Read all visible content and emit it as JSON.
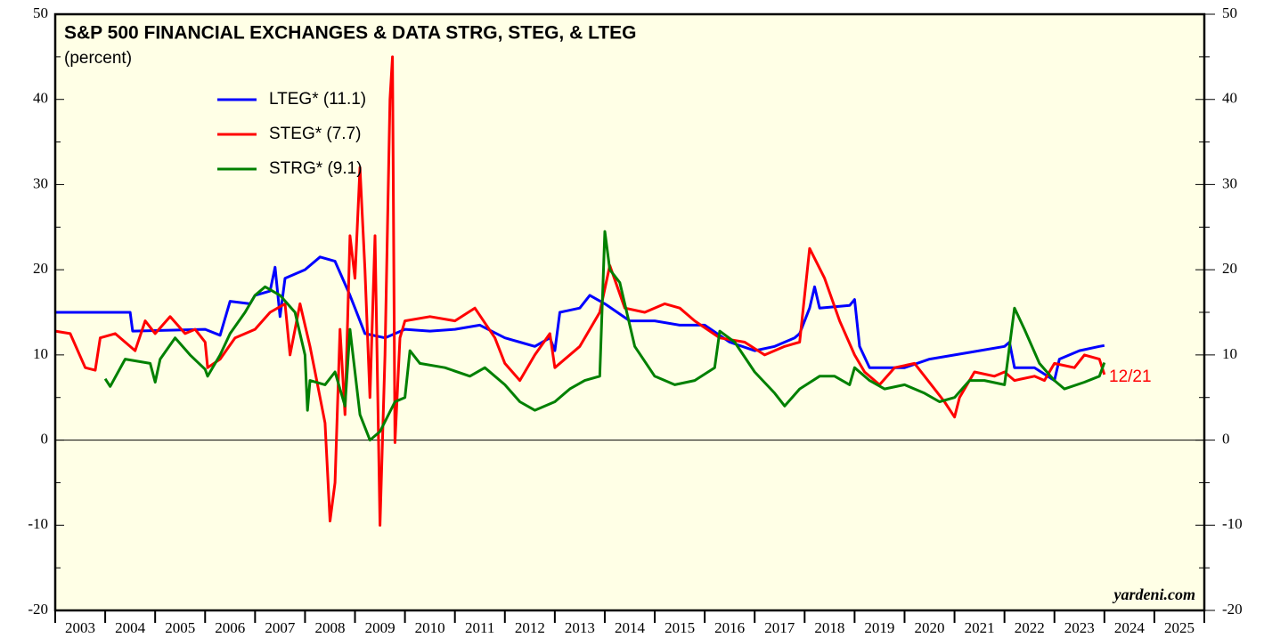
{
  "chart_data": {
    "type": "line",
    "title": "S&P 500 FINANCIAL EXCHANGES & DATA STRG, STEG, & LTEG",
    "subtitle": "(percent)",
    "annotation": "12/21",
    "annotation_color": "#ff0000",
    "source": "yardeni.com",
    "xlim": [
      2003,
      2026
    ],
    "xticks": [
      2003,
      2004,
      2005,
      2006,
      2007,
      2008,
      2009,
      2010,
      2011,
      2012,
      2013,
      2014,
      2015,
      2016,
      2017,
      2018,
      2019,
      2020,
      2021,
      2022,
      2023,
      2024,
      2025,
      2026
    ],
    "year_labels": [
      "2003",
      "2004",
      "2005",
      "2006",
      "2007",
      "2008",
      "2009",
      "2010",
      "2011",
      "2012",
      "2013",
      "2014",
      "2015",
      "2016",
      "2017",
      "2018",
      "2019",
      "2020",
      "2021",
      "2022",
      "2023",
      "2024",
      "2025"
    ],
    "ylim": [
      -20,
      50
    ],
    "yticks": [
      -20,
      -10,
      0,
      10,
      20,
      30,
      40,
      50
    ],
    "yticks_minor": [
      -15,
      -5,
      5,
      15,
      25,
      35,
      45
    ],
    "series": [
      {
        "name": "LTEG* (11.1)",
        "color": "#0000ff",
        "x": [
          2003.0,
          2004.5,
          2004.55,
          2006.0,
          2006.3,
          2006.5,
          2006.9,
          2007.0,
          2007.3,
          2007.4,
          2007.5,
          2007.6,
          2008.0,
          2008.3,
          2008.6,
          2008.9,
          2009.0,
          2009.2,
          2009.6,
          2010.0,
          2010.5,
          2011.0,
          2011.5,
          2012.0,
          2012.3,
          2012.6,
          2012.9,
          2013.0,
          2013.1,
          2013.5,
          2013.7,
          2014.0,
          2014.5,
          2015.0,
          2015.5,
          2016.0,
          2016.5,
          2017.0,
          2017.4,
          2017.8,
          2017.9,
          2018.1,
          2018.2,
          2018.3,
          2018.9,
          2019.0,
          2019.1,
          2019.3,
          2019.6,
          2020.0,
          2020.5,
          2021.0,
          2021.5,
          2022.0,
          2022.1,
          2022.2,
          2022.6,
          2023.0,
          2023.1,
          2023.5,
          2023.9,
          2024.0
        ],
        "values": [
          15,
          15,
          12.8,
          13,
          12.3,
          16.3,
          16,
          17,
          17.5,
          20.3,
          14.5,
          19,
          20,
          21.5,
          21,
          17,
          15.5,
          12.5,
          12,
          13,
          12.8,
          13,
          13.5,
          12,
          11.5,
          11,
          12,
          10.5,
          15,
          15.5,
          17,
          16,
          14,
          14,
          13.5,
          13.5,
          11.5,
          10.5,
          11,
          12,
          12.5,
          15.5,
          18,
          15.5,
          15.8,
          16.5,
          11,
          8.5,
          8.5,
          8.5,
          9.5,
          10,
          10.5,
          11,
          11.5,
          8.5,
          8.5,
          7,
          9.5,
          10.5,
          11,
          11.1
        ]
      },
      {
        "name": "STEG* (7.7)",
        "color": "#ff0000",
        "x": [
          2003.0,
          2003.3,
          2003.6,
          2003.8,
          2003.9,
          2004.2,
          2004.6,
          2004.8,
          2005.0,
          2005.3,
          2005.6,
          2005.8,
          2006.0,
          2006.05,
          2006.3,
          2006.6,
          2007.0,
          2007.3,
          2007.6,
          2007.7,
          2007.9,
          2008.1,
          2008.2,
          2008.4,
          2008.5,
          2008.6,
          2008.7,
          2008.8,
          2008.9,
          2009.0,
          2009.1,
          2009.2,
          2009.3,
          2009.4,
          2009.5,
          2009.6,
          2009.7,
          2009.75,
          2009.8,
          2009.9,
          2010.0,
          2010.5,
          2011.0,
          2011.4,
          2011.8,
          2012.0,
          2012.3,
          2012.6,
          2012.9,
          2013.0,
          2013.5,
          2013.9,
          2014.1,
          2014.4,
          2014.8,
          2015.2,
          2015.5,
          2015.8,
          2016.3,
          2016.8,
          2017.2,
          2017.6,
          2017.9,
          2018.0,
          2018.1,
          2018.4,
          2018.7,
          2019.0,
          2019.2,
          2019.5,
          2019.8,
          2020.2,
          2020.6,
          2020.8,
          2021.0,
          2021.1,
          2021.4,
          2021.8,
          2022.0,
          2022.2,
          2022.6,
          2022.8,
          2023.0,
          2023.4,
          2023.6,
          2023.9,
          2024.0
        ],
        "values": [
          12.8,
          12.5,
          8.5,
          8.2,
          12,
          12.5,
          10.5,
          14,
          12.5,
          14.5,
          12.5,
          13,
          11.5,
          8.5,
          9.5,
          12,
          13,
          15,
          16,
          10,
          16,
          11,
          8,
          2,
          -9.5,
          -5,
          13,
          3,
          24,
          19,
          32,
          20,
          5,
          24,
          -10,
          10,
          40,
          45,
          -0.3,
          12,
          14,
          14.5,
          14,
          15.5,
          12,
          9,
          7,
          10,
          12.5,
          8.5,
          11,
          15,
          20.5,
          15.5,
          15,
          16,
          15.5,
          14,
          12,
          11.5,
          10,
          11,
          11.5,
          17,
          22.5,
          19,
          14,
          10,
          8,
          6.5,
          8.5,
          9,
          6,
          4.5,
          2.7,
          5,
          8,
          7.5,
          8,
          7,
          7.5,
          7,
          9,
          8.5,
          10,
          9.5,
          7.7
        ]
      },
      {
        "name": "STRG* (9.1)",
        "color": "#008000",
        "x": [
          2004.0,
          2004.1,
          2004.4,
          2004.9,
          2005.0,
          2005.1,
          2005.4,
          2005.7,
          2006.0,
          2006.05,
          2006.3,
          2006.5,
          2006.8,
          2007.0,
          2007.2,
          2007.5,
          2007.8,
          2008.0,
          2008.05,
          2008.1,
          2008.4,
          2008.6,
          2008.8,
          2008.9,
          2009.1,
          2009.3,
          2009.5,
          2009.8,
          2010.0,
          2010.1,
          2010.3,
          2010.8,
          2011.3,
          2011.6,
          2012.0,
          2012.3,
          2012.6,
          2013.0,
          2013.3,
          2013.6,
          2013.9,
          2014.0,
          2014.1,
          2014.3,
          2014.6,
          2015.0,
          2015.4,
          2015.8,
          2016.2,
          2016.3,
          2016.6,
          2017.0,
          2017.4,
          2017.6,
          2017.9,
          2018.3,
          2018.6,
          2018.9,
          2019.0,
          2019.3,
          2019.6,
          2020.0,
          2020.4,
          2020.7,
          2021.0,
          2021.3,
          2021.6,
          2022.0,
          2022.2,
          2022.4,
          2022.7,
          2023.0,
          2023.2,
          2023.6,
          2023.9,
          2024.0
        ],
        "values": [
          7.2,
          6.3,
          9.5,
          9,
          6.8,
          9.5,
          12,
          10,
          8.3,
          7.5,
          10,
          12.5,
          15,
          17,
          18,
          17,
          15,
          10,
          3.5,
          7,
          6.5,
          8,
          4,
          13,
          3,
          0,
          1,
          4.5,
          5,
          10.5,
          9,
          8.5,
          7.5,
          8.5,
          6.5,
          4.5,
          3.5,
          4.5,
          6,
          7,
          7.5,
          24.5,
          20,
          18.5,
          11,
          7.5,
          6.5,
          7,
          8.5,
          12.8,
          11.5,
          8,
          5.5,
          4,
          6,
          7.5,
          7.5,
          6.5,
          8.5,
          7,
          6,
          6.5,
          5.5,
          4.5,
          5,
          7,
          7,
          6.5,
          15.5,
          13,
          9,
          7,
          6,
          6.8,
          7.5,
          9.1
        ]
      }
    ]
  }
}
